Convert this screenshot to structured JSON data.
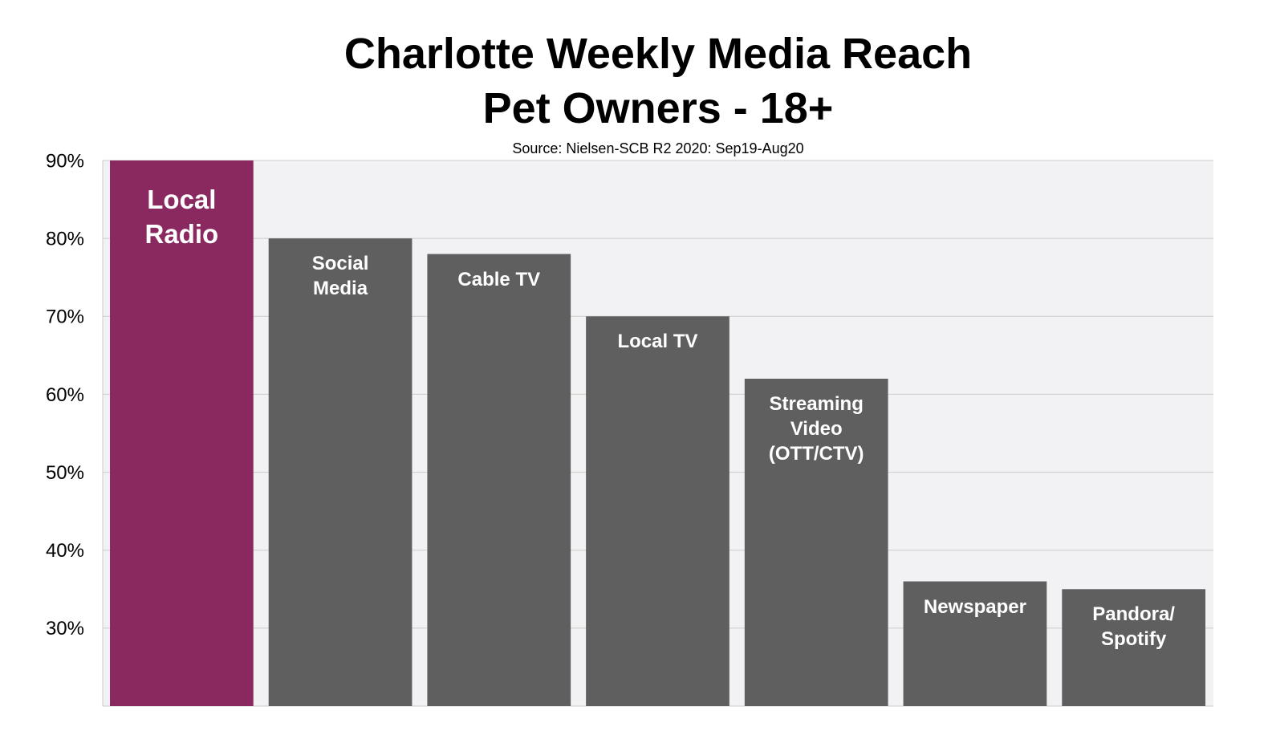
{
  "chart_data": {
    "type": "bar",
    "title": "Charlotte Weekly Media Reach",
    "subtitle": "Pet Owners - 18+",
    "source": "Source: Nielsen-SCB R2 2020: Sep19-Aug20",
    "categories": [
      "Local\nRadio",
      "Social\nMedia",
      "Cable TV",
      "Local TV",
      "Streaming\nVideo\n(OTT/CTV)",
      "Newspaper",
      "Pandora/\nSpotify"
    ],
    "values": [
      90,
      80,
      78,
      70,
      62,
      36,
      35
    ],
    "colors": [
      "#8a2860",
      "#5f5f5f",
      "#5f5f5f",
      "#5f5f5f",
      "#5f5f5f",
      "#5f5f5f",
      "#5f5f5f"
    ],
    "ylim": [
      20,
      90
    ],
    "yticks": [
      {
        "value": 30,
        "label": "30%"
      },
      {
        "value": 40,
        "label": "40%"
      },
      {
        "value": 50,
        "label": "50%"
      },
      {
        "value": 60,
        "label": "60%"
      },
      {
        "value": 70,
        "label": "70%"
      },
      {
        "value": 80,
        "label": "80%"
      },
      {
        "value": 90,
        "label": "90%"
      }
    ],
    "grid": true
  }
}
